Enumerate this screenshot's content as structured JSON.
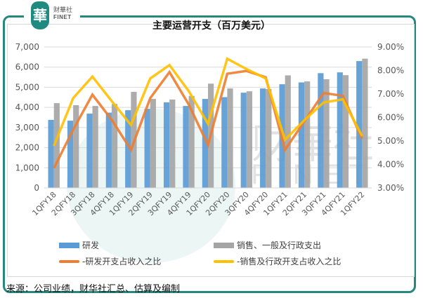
{
  "brand": {
    "logo_glyph": "華",
    "name_cn": "财華社",
    "name_en": "FINET"
  },
  "colors": {
    "frame": "#25877d",
    "rd_bar": "#5b9bd5",
    "sga_bar": "#a5a5a5",
    "rd_ratio_line": "#ed7d31",
    "sga_ratio_line": "#ffc000",
    "grid": "#d9d9d9"
  },
  "chart_data": {
    "type": "bar",
    "title": "主要运营开支（百万美元）",
    "categories": [
      "1QFY18",
      "2QFY18",
      "3QFY18",
      "4QFY18",
      "1QFY19",
      "2QFY19",
      "3QFY19",
      "4QFY19",
      "1QFY20",
      "2QFY20",
      "3QFY20",
      "4QFY20",
      "1QFY21",
      "2QFY21",
      "3QFY21",
      "4QFY21",
      "1QFY22"
    ],
    "series": [
      {
        "name": "研发",
        "type": "bar",
        "axis": "left",
        "values": [
          3380,
          3340,
          3690,
          3740,
          3860,
          3930,
          4250,
          4070,
          4420,
          4510,
          4730,
          4940,
          5150,
          5240,
          5700,
          5740,
          6300
        ]
      },
      {
        "name": "销售、一般及行政支出",
        "type": "bar",
        "axis": "left",
        "values": [
          4210,
          4110,
          4070,
          4170,
          4770,
          4420,
          4390,
          4570,
          5180,
          4940,
          4800,
          4910,
          5590,
          5290,
          5400,
          5600,
          6420
        ]
      },
      {
        "name": "-研发开支占收入之比",
        "type": "line",
        "axis": "right",
        "values": [
          3.84,
          5.48,
          6.97,
          5.9,
          4.62,
          6.82,
          7.93,
          6.55,
          4.83,
          7.86,
          7.98,
          7.71,
          4.62,
          5.83,
          7.04,
          6.92,
          5.09
        ]
      },
      {
        "name": "-销售及行政开支占收入之比",
        "type": "line",
        "axis": "right",
        "values": [
          4.79,
          6.82,
          7.74,
          6.7,
          5.68,
          7.66,
          8.23,
          7.12,
          5.73,
          8.5,
          8.06,
          7.66,
          5.05,
          5.88,
          6.64,
          6.77,
          5.21
        ]
      }
    ],
    "y_left": {
      "min": 0,
      "max": 7000,
      "step": 1000,
      "tick_labels": [
        "0",
        "1,000",
        "2,000",
        "3,000",
        "4,000",
        "5,000",
        "6,000",
        "7,000"
      ]
    },
    "y_right": {
      "min": 3,
      "max": 9,
      "step": 1,
      "tick_labels": [
        "3.00%",
        "4.00%",
        "5.00%",
        "6.00%",
        "7.00%",
        "8.00%",
        "9.00%"
      ]
    },
    "xlabel": "",
    "ylabel": "",
    "grid": true,
    "legend_position": "bottom"
  },
  "source": "来源：公司业绩，财华社汇总、估算及编制"
}
